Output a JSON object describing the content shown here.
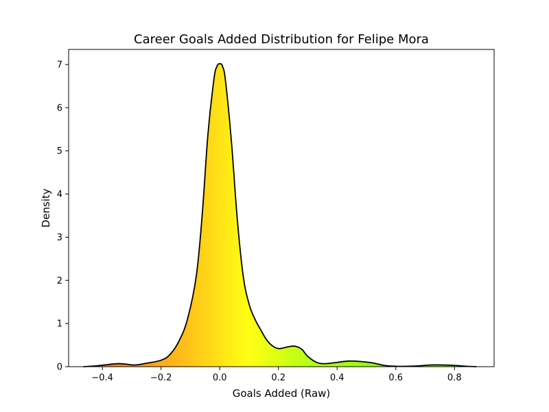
{
  "chart_data": {
    "type": "area",
    "title": "Career Goals Added Distribution for Felipe Mora",
    "xlabel": "Goals Added (Raw)",
    "ylabel": "Density",
    "xlim": [
      -0.515,
      0.935
    ],
    "ylim": [
      0,
      7.35
    ],
    "xticks": [
      -0.4,
      -0.2,
      0.0,
      0.2,
      0.4,
      0.6,
      0.8
    ],
    "xtick_labels": [
      "−0.4",
      "−0.2",
      "0.0",
      "0.2",
      "0.4",
      "0.6",
      "0.8"
    ],
    "yticks": [
      0,
      1,
      2,
      3,
      4,
      5,
      6,
      7
    ],
    "ytick_labels": [
      "0",
      "1",
      "2",
      "3",
      "4",
      "5",
      "6",
      "7"
    ],
    "grid": false,
    "fill_gradient": [
      "#f46d24",
      "#ffb81a",
      "#ffff14",
      "#b3ff14",
      "#5ef00f"
    ],
    "x": [
      -0.465,
      -0.42,
      -0.38,
      -0.35,
      -0.32,
      -0.29,
      -0.25,
      -0.2,
      -0.17,
      -0.14,
      -0.11,
      -0.08,
      -0.06,
      -0.04,
      -0.02,
      -0.01,
      0.0,
      0.01,
      0.02,
      0.04,
      0.06,
      0.08,
      0.1,
      0.12,
      0.14,
      0.16,
      0.18,
      0.2,
      0.22,
      0.24,
      0.26,
      0.28,
      0.3,
      0.33,
      0.36,
      0.4,
      0.44,
      0.48,
      0.52,
      0.56,
      0.6,
      0.64,
      0.68,
      0.72,
      0.76,
      0.8,
      0.84,
      0.875
    ],
    "y": [
      0.0,
      0.02,
      0.05,
      0.07,
      0.06,
      0.04,
      0.08,
      0.15,
      0.28,
      0.58,
      1.1,
      2.1,
      3.5,
      5.4,
      6.65,
      6.95,
      7.02,
      6.95,
      6.6,
      5.2,
      3.4,
      2.1,
      1.45,
      1.1,
      0.85,
      0.62,
      0.48,
      0.42,
      0.44,
      0.47,
      0.47,
      0.4,
      0.24,
      0.1,
      0.07,
      0.1,
      0.13,
      0.12,
      0.09,
      0.03,
      0.01,
      0.01,
      0.02,
      0.04,
      0.04,
      0.03,
      0.01,
      0.0
    ]
  }
}
